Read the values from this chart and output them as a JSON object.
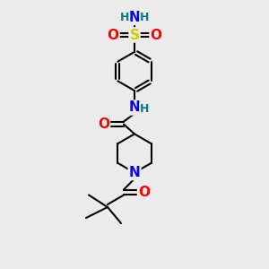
{
  "bg_color": "#ebebeb",
  "atom_colors": {
    "C": "#000000",
    "N": "#0000ff",
    "O": "#ff0000",
    "S": "#cccc00",
    "H": "#008080"
  },
  "bond_color": "#000000",
  "bond_width": 1.5,
  "font_size_atom": 10,
  "fig_width": 3.0,
  "fig_height": 3.0,
  "dpi": 100
}
